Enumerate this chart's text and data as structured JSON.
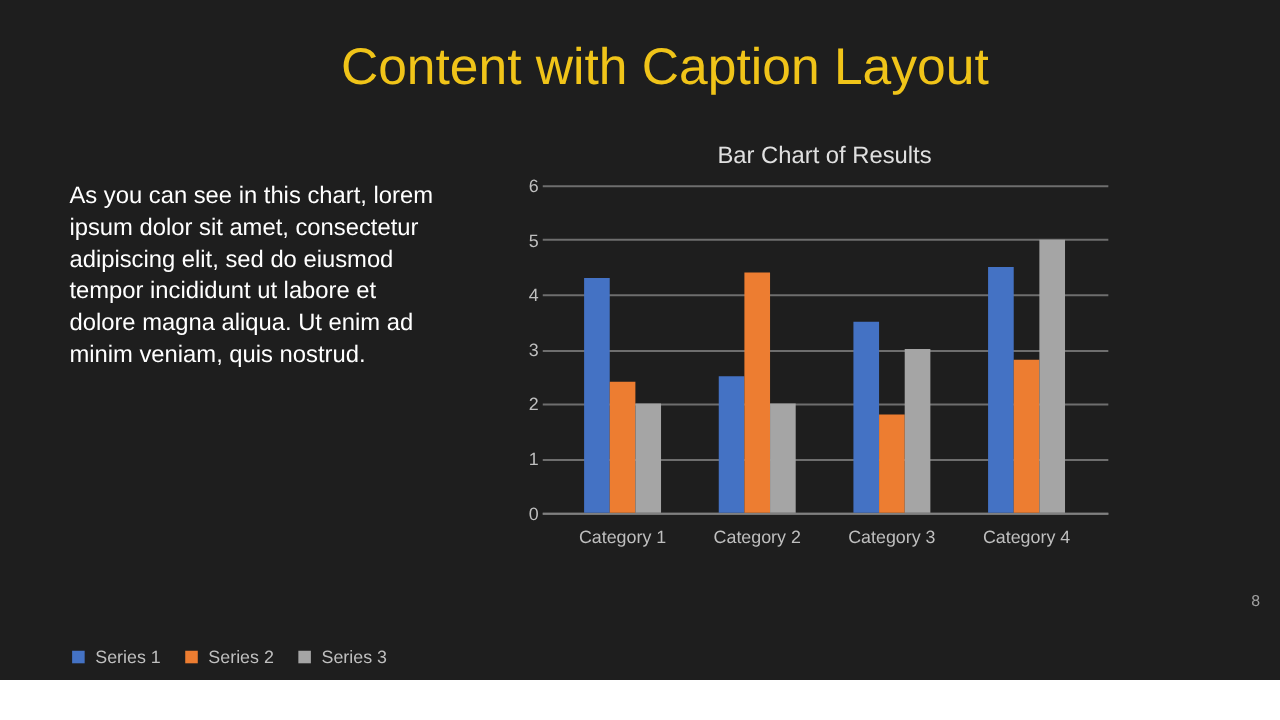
{
  "chart_data": {
    "type": "bar",
    "title": "Content with Caption Layout",
    "subtitle": "Bar Chart of Results",
    "categories": [
      "Category 1",
      "Category 2",
      "Category 3",
      "Category 4"
    ],
    "series": [
      {
        "name": "Series 1",
        "color": "#4472c4",
        "values": [
          4.3,
          2.5,
          3.5,
          4.5
        ]
      },
      {
        "name": "Series 2",
        "color": "#ed7d31",
        "values": [
          2.4,
          4.4,
          1.8,
          2.8
        ]
      },
      {
        "name": "Series 3",
        "color": "#a5a5a5",
        "values": [
          2,
          2,
          3,
          5
        ]
      }
    ],
    "ylim": [
      0,
      6
    ],
    "yticks": [
      0,
      1,
      2,
      3,
      4,
      5,
      6
    ],
    "grid": "y",
    "legend": "bottom",
    "annotations": [
      "As you can see in this chart, lorem\nipsum dolor sit amet, consectetur\nadipiscing elit, sed do eiusmod\ntempor incididunt ut labore et\ndolore magna aliqua. Ut enim ad\nminim veniam, quis nostrud.",
      "8"
    ]
  }
}
